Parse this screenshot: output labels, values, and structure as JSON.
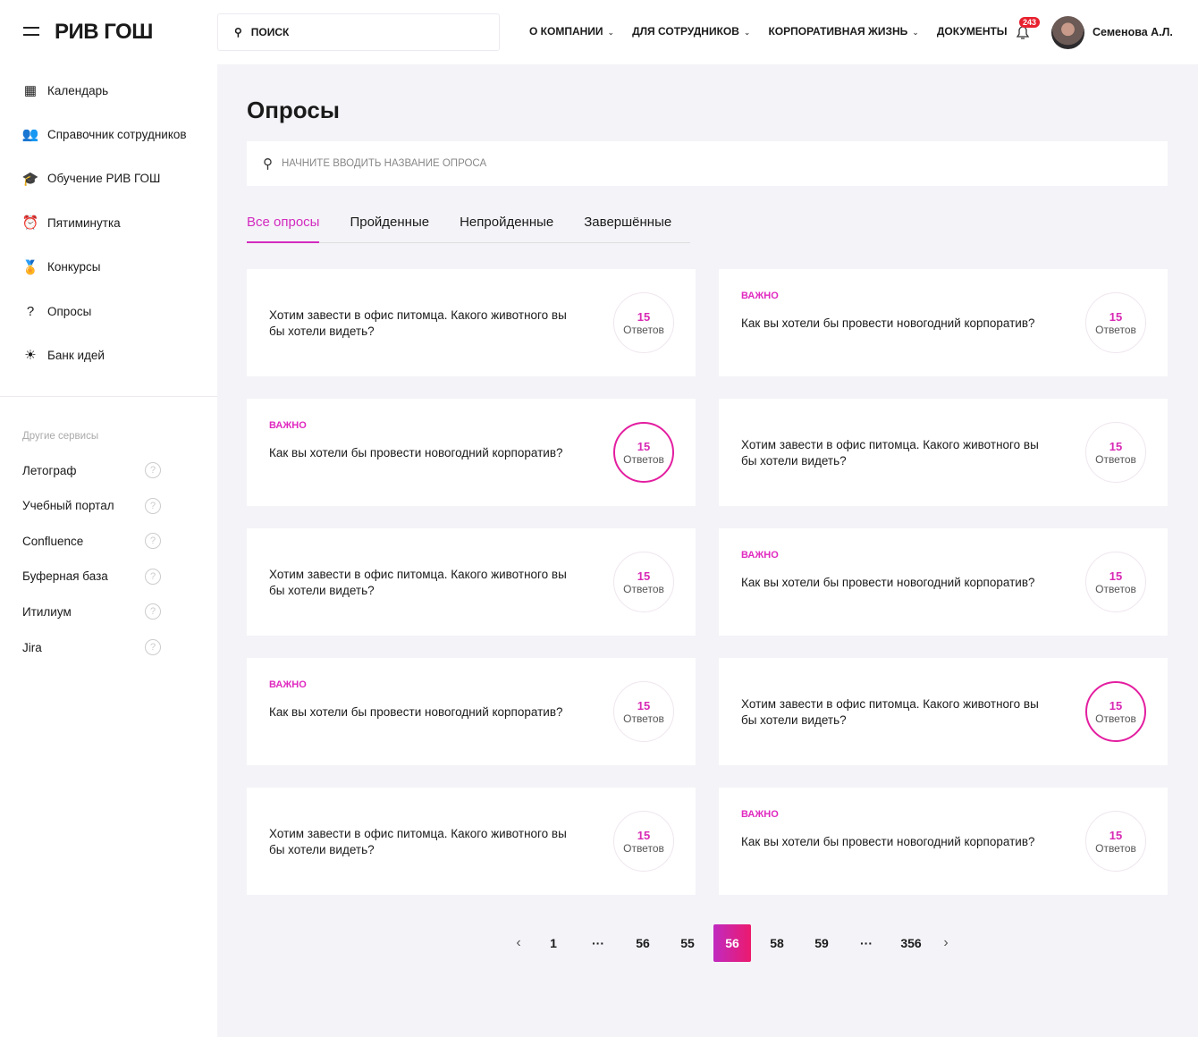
{
  "header": {
    "logo": "РИВ ГОШ",
    "search_placeholder": "ПОИСК",
    "nav": [
      {
        "label": "О КОМПАНИИ",
        "dropdown": true
      },
      {
        "label": "ДЛЯ СОТРУДНИКОВ",
        "dropdown": true
      },
      {
        "label": "КОРПОРАТИВНАЯ ЖИЗНЬ",
        "dropdown": true
      },
      {
        "label": "ДОКУМЕНТЫ",
        "dropdown": false
      }
    ],
    "notifications": "243",
    "user": "Семенова А.Л."
  },
  "sidebar": {
    "items": [
      {
        "label": "Календарь",
        "icon": "calendar-icon",
        "glyph": "▦"
      },
      {
        "label": "Справочник сотрудников",
        "icon": "people-icon",
        "glyph": "👥"
      },
      {
        "label": "Обучение РИВ ГОШ",
        "icon": "graduation-cap-icon",
        "glyph": "🎓"
      },
      {
        "label": "Пятиминутка",
        "icon": "alarm-clock-icon",
        "glyph": "⏰"
      },
      {
        "label": "Конкурсы",
        "icon": "award-icon",
        "glyph": "🏅"
      },
      {
        "label": "Опросы",
        "icon": "question-box-icon",
        "glyph": "?"
      },
      {
        "label": "Банк идей",
        "icon": "lightbulb-icon",
        "glyph": "☀"
      }
    ],
    "other_title": "Другие сервисы",
    "services": [
      "Летограф",
      "Учебный портал",
      "Confluence",
      "Буферная база",
      "Итилиум",
      "Jira"
    ]
  },
  "main": {
    "title": "Опросы",
    "search_placeholder": "НАЧНИТЕ ВВОДИТЬ НАЗВАНИЕ ОПРОСА",
    "tabs": [
      "Все опросы",
      "Пройденные",
      "Непройденные",
      "Завершённые"
    ],
    "active_tab": 0,
    "cards": [
      {
        "important": "",
        "question": "Хотим завести в офис питомца. Какого животного вы бы хотели видеть?",
        "count": "15",
        "count_label": "Ответов",
        "highlighted": false
      },
      {
        "important": "ВАЖНО",
        "question": "Как вы хотели бы провести новогодний корпоратив?",
        "count": "15",
        "count_label": "Ответов",
        "highlighted": false
      },
      {
        "important": "ВАЖНО",
        "question": "Как вы хотели бы провести новогодний корпоратив?",
        "count": "15",
        "count_label": "Ответов",
        "highlighted": true
      },
      {
        "important": "",
        "question": "Хотим завести в офис питомца. Какого животного вы бы хотели видеть?",
        "count": "15",
        "count_label": "Ответов",
        "highlighted": false
      },
      {
        "important": "",
        "question": "Хотим завести в офис питомца. Какого животного вы бы хотели видеть?",
        "count": "15",
        "count_label": "Ответов",
        "highlighted": false
      },
      {
        "important": "ВАЖНО",
        "question": "Как вы хотели бы провести новогодний корпоратив?",
        "count": "15",
        "count_label": "Ответов",
        "highlighted": false
      },
      {
        "important": "ВАЖНО",
        "question": "Как вы хотели бы провести новогодний корпоратив?",
        "count": "15",
        "count_label": "Ответов",
        "highlighted": false
      },
      {
        "important": "",
        "question": "Хотим завести в офис питомца. Какого животного вы бы хотели видеть?",
        "count": "15",
        "count_label": "Ответов",
        "highlighted": true
      },
      {
        "important": "",
        "question": "Хотим завести в офис питомца. Какого животного вы бы хотели видеть?",
        "count": "15",
        "count_label": "Ответов",
        "highlighted": false
      },
      {
        "important": "ВАЖНО",
        "question": "Как вы хотели бы провести новогодний корпоратив?",
        "count": "15",
        "count_label": "Ответов",
        "highlighted": false
      }
    ],
    "pagination": {
      "pages": [
        "1",
        "···",
        "56",
        "55",
        "56",
        "58",
        "59",
        "···",
        "356"
      ],
      "current_index": 4
    }
  }
}
